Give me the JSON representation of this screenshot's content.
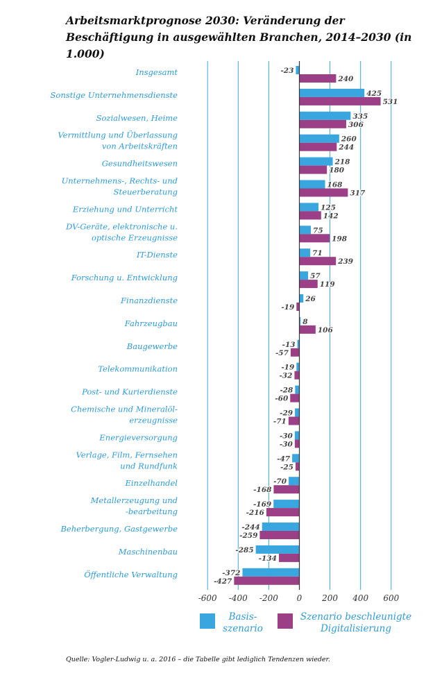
{
  "title": "Arbeitsmarktprognose 2030: Veränderung der Beschäftigung in ausgewählten Branchen, 2014–2030 (in 1.000)",
  "source": "Quelle: Vogler-Ludwig u. a. 2016 – die Tabelle gibt lediglich Tendenzen wieder.",
  "colors": {
    "basis": "#3aa6df",
    "digital": "#9b3f86",
    "label": "#2d9bd7",
    "grid": "#3aa6df"
  },
  "chart_data": {
    "type": "bar",
    "orientation": "horizontal",
    "xlim": [
      -600,
      600
    ],
    "xticks": [
      "-600",
      "-400",
      "-200",
      "0",
      "200",
      "400",
      "600"
    ],
    "xtick_values": [
      -600,
      -400,
      -200,
      0,
      200,
      400,
      600
    ],
    "legend_position": "bottom",
    "categories": [
      [
        "Insgesamt"
      ],
      [
        "Sonstige Unternehmensdienste"
      ],
      [
        "Sozialwesen, Heime"
      ],
      [
        "Vermittlung und Überlassung",
        "von Arbeitskräften"
      ],
      [
        "Gesundheitswesen"
      ],
      [
        "Unternehmens-, Rechts- und",
        "Steuerberatung"
      ],
      [
        "Erziehung und Unterricht"
      ],
      [
        "DV-Geräte, elektronische u.",
        "optische Erzeugnisse"
      ],
      [
        "IT-Dienste"
      ],
      [
        "Forschung u. Entwicklung"
      ],
      [
        "Finanzdienste"
      ],
      [
        "Fahrzeugbau"
      ],
      [
        "Baugewerbe"
      ],
      [
        "Telekommunikation"
      ],
      [
        "Post- und Kurierdienste"
      ],
      [
        "Chemische und Mineralöl-",
        "erzeugnisse"
      ],
      [
        "Energieversorgung"
      ],
      [
        "Verlage, Film, Fernsehen",
        "und Rundfunk"
      ],
      [
        "Einzelhandel"
      ],
      [
        "Metallerzeugung und",
        "-bearbeitung"
      ],
      [
        "Beherbergung, Gastgewerbe"
      ],
      [
        "Maschinenbau"
      ],
      [
        "Öffentliche Verwaltung"
      ]
    ],
    "series": [
      {
        "name": "Basis-szenario",
        "legend_lines": [
          "Basis-",
          "szenario"
        ],
        "color_key": "basis",
        "values": [
          -23,
          425,
          335,
          260,
          218,
          168,
          125,
          75,
          71,
          57,
          26,
          8,
          -13,
          -19,
          -28,
          -29,
          -30,
          -47,
          -70,
          -169,
          -244,
          -285,
          -372
        ],
        "labels": [
          "-23",
          "425",
          "335",
          "260",
          "218",
          "168",
          "125",
          "75",
          "71",
          "57",
          "26",
          "8",
          "-13",
          "-19",
          "-28",
          "-29",
          "-30",
          "-47",
          "-70",
          "-169",
          "-244",
          "-285",
          "-372"
        ]
      },
      {
        "name": "Szenario beschleunigte Digitalisierung",
        "legend_lines": [
          "Szenario beschleunigte",
          "Digitalisierung"
        ],
        "color_key": "digital",
        "values": [
          240,
          531,
          306,
          244,
          180,
          317,
          142,
          198,
          239,
          119,
          -19,
          106,
          -57,
          -32,
          -60,
          -71,
          -30,
          -25,
          -168,
          -216,
          -259,
          -134,
          -427
        ],
        "labels": [
          "240",
          "531",
          "306",
          "244",
          "180",
          "317",
          "142",
          "198",
          "239",
          "119",
          "-19",
          "106",
          "-57",
          "-32",
          "-60",
          "-71",
          "-30",
          "-25",
          "-168",
          "-216",
          "-259",
          "-134",
          "-427"
        ]
      }
    ]
  }
}
